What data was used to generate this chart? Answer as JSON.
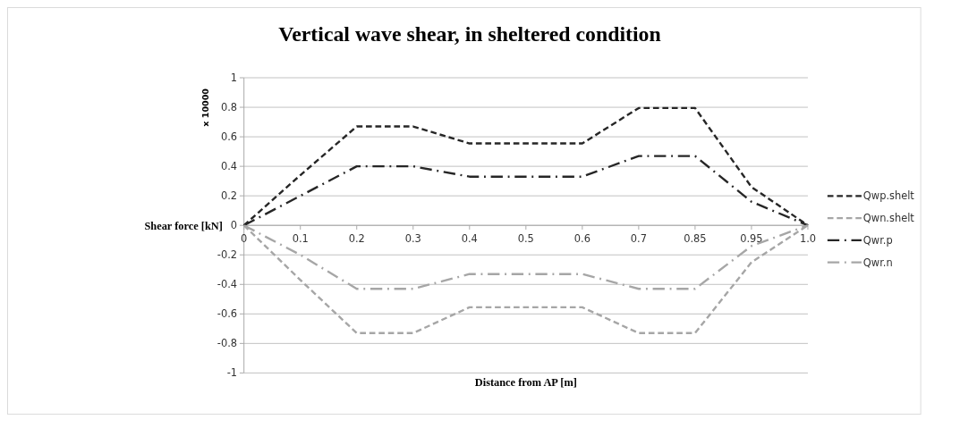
{
  "chart_data": {
    "type": "line",
    "title": "Vertical wave shear, in sheltered condition",
    "xlabel": "Distance from AP [m]",
    "ylabel": "Shear force [kN]",
    "annotations": [
      "x 10000"
    ],
    "categories": [
      "0",
      "0.1",
      "0.2",
      "0.3",
      "0.4",
      "0.5",
      "0.6",
      "0.7",
      "0.85",
      "0.95",
      "1.0"
    ],
    "series": [
      {
        "name": "Qwp.shelt",
        "color": "#262626",
        "line_style": "dashed",
        "values": [
          0,
          0.34,
          0.67,
          0.67,
          0.555,
          0.555,
          0.555,
          0.795,
          0.795,
          0.26,
          0
        ]
      },
      {
        "name": "Qwn.shelt",
        "color": "#a6a6a6",
        "line_style": "dashed",
        "values": [
          0,
          -0.37,
          -0.73,
          -0.73,
          -0.555,
          -0.555,
          -0.555,
          -0.73,
          -0.73,
          -0.25,
          0
        ]
      },
      {
        "name": "Qwr.p",
        "color": "#262626",
        "line_style": "dashdot",
        "values": [
          0,
          0.2,
          0.4,
          0.4,
          0.33,
          0.33,
          0.33,
          0.47,
          0.47,
          0.16,
          0
        ]
      },
      {
        "name": "Qwr.n",
        "color": "#a6a6a6",
        "line_style": "dashdot",
        "values": [
          0,
          -0.2,
          -0.43,
          -0.43,
          -0.33,
          -0.33,
          -0.33,
          -0.43,
          -0.43,
          -0.14,
          0
        ]
      }
    ],
    "ylim": [
      -1,
      1
    ],
    "yticks": [
      -1,
      -0.8,
      -0.6,
      -0.4,
      -0.2,
      0,
      0.2,
      0.4,
      0.6,
      0.8,
      1
    ],
    "grid": "y",
    "legend": "right"
  }
}
